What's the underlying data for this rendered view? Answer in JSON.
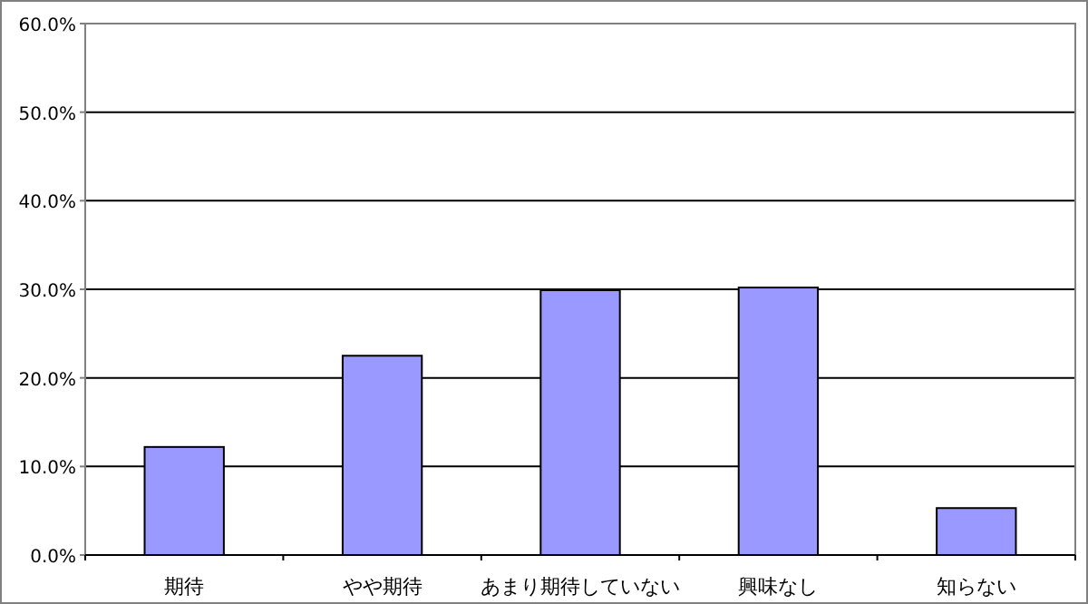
{
  "chart_data": {
    "type": "bar",
    "categories": [
      "期待",
      "やや期待",
      "あまり期待していない",
      "興味なし",
      "知らない"
    ],
    "values": [
      12.2,
      22.5,
      29.9,
      30.2,
      5.3
    ],
    "color": "#9999ff",
    "ylim": [
      0,
      60
    ],
    "yticks": [
      {
        "value": 0,
        "label": "0.0%"
      },
      {
        "value": 10,
        "label": "10.0%"
      },
      {
        "value": 20,
        "label": "20.0%"
      },
      {
        "value": 30,
        "label": "30.0%"
      },
      {
        "value": 40,
        "label": "40.0%"
      },
      {
        "value": 50,
        "label": "50.0%"
      },
      {
        "value": 60,
        "label": "60.0%"
      }
    ],
    "grid": "y"
  }
}
